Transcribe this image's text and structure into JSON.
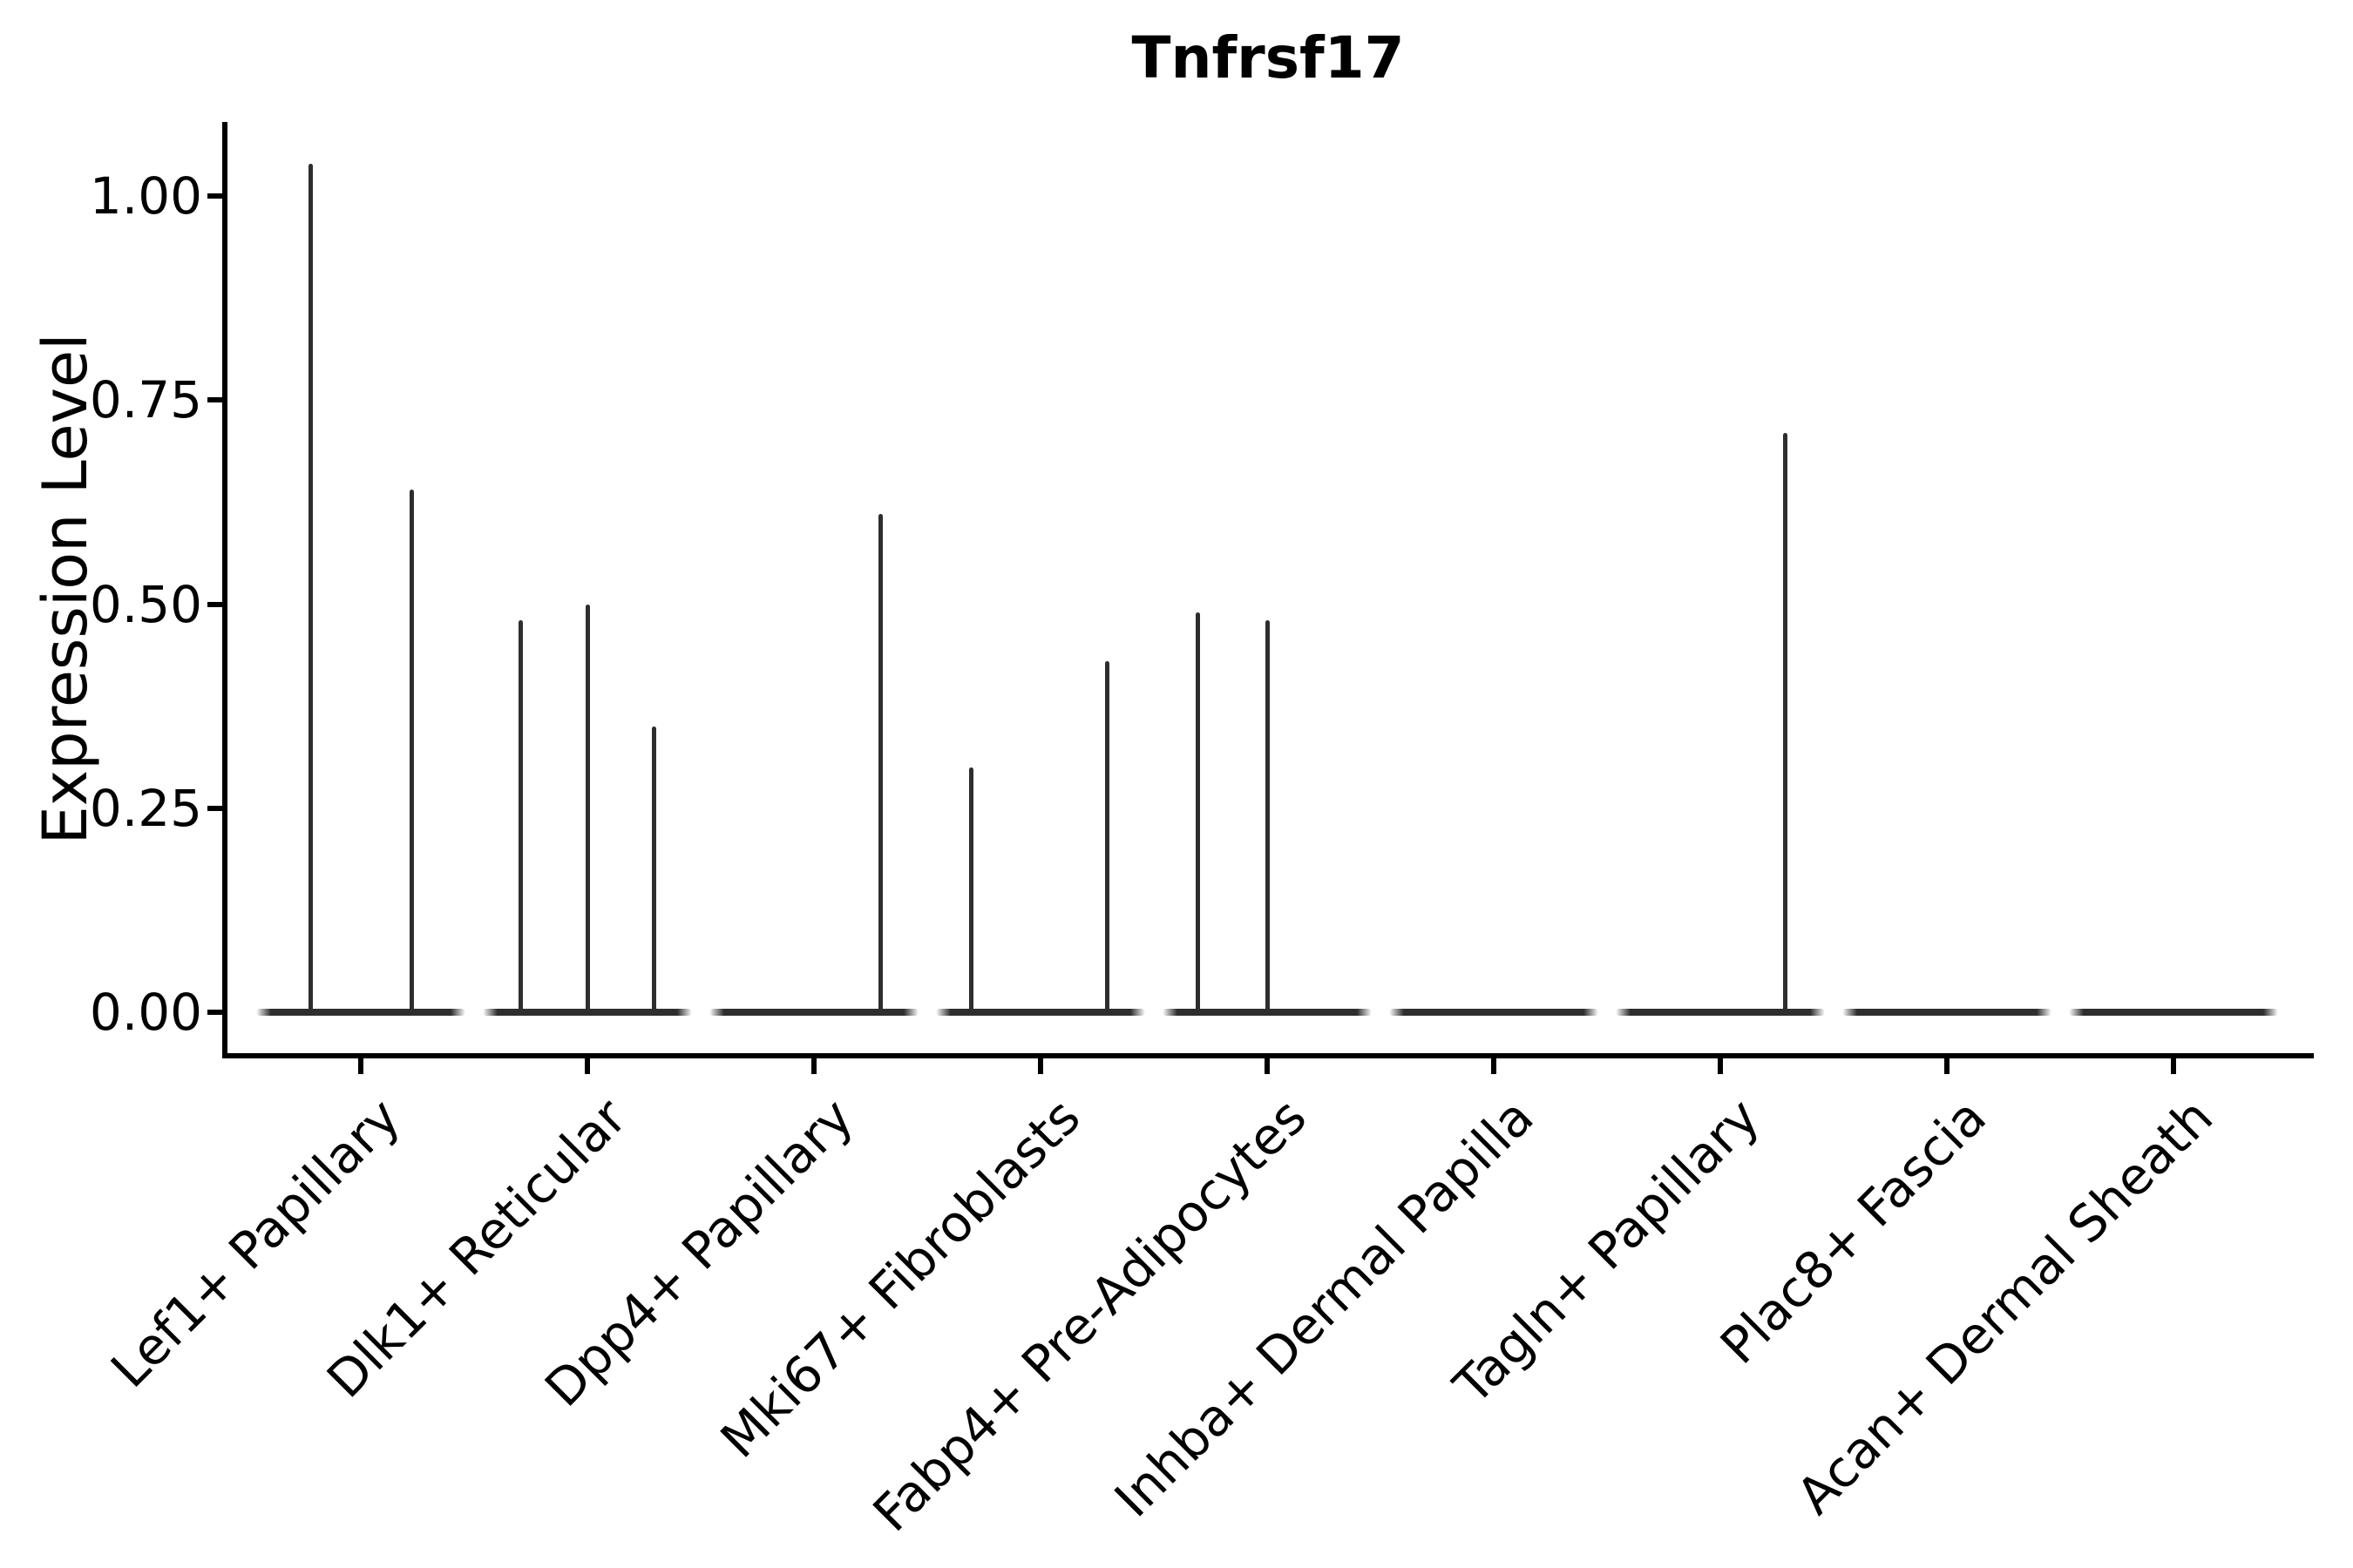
{
  "title": "Tnfrsf17",
  "axes": {
    "ylabel": "Expression Level",
    "y_tick_labels": [
      "0.00",
      "0.25",
      "0.50",
      "0.75",
      "1.00"
    ]
  },
  "colors": {
    "axis": "#000000",
    "text": "#000000",
    "violin": "#2e2e2e",
    "background": "#ffffff"
  },
  "chart_data": {
    "type": "violin",
    "title": "Tnfrsf17",
    "xlabel": "",
    "ylabel": "Expression Level",
    "ylim": [
      -0.05,
      1.09
    ],
    "y_ticks": [
      0,
      0.25,
      0.5,
      0.75,
      1.0
    ],
    "grid": false,
    "legend": "none",
    "categories": [
      "Lef1+ Papillary",
      "Dlk1+ Reticular",
      "Dpp4+ Papillary",
      "Mki67+ Fibroblasts",
      "Fabp4+ Pre-Adipocytes",
      "Inhba+ Dermal Papilla",
      "Tagln+ Papillary",
      "Plac8+ Fascia",
      "Acan+ Dermal Sheath"
    ],
    "series": [
      {
        "name": "Lef1+ Papillary",
        "baseline_value": 0,
        "spikes": [
          {
            "frac": 0.26,
            "value": 1.04
          },
          {
            "frac": 0.745,
            "value": 0.64
          }
        ]
      },
      {
        "name": "Dlk1+ Reticular",
        "baseline_value": 0,
        "spikes": [
          {
            "frac": 0.18,
            "value": 0.48
          },
          {
            "frac": 0.5,
            "value": 0.5
          },
          {
            "frac": 0.82,
            "value": 0.35
          }
        ]
      },
      {
        "name": "Dpp4+ Papillary",
        "baseline_value": 0,
        "spikes": [
          {
            "frac": 0.82,
            "value": 0.61
          }
        ]
      },
      {
        "name": "Mki67+ Fibroblasts",
        "baseline_value": 0,
        "spikes": [
          {
            "frac": 0.17,
            "value": 0.3
          },
          {
            "frac": 0.82,
            "value": 0.43
          }
        ]
      },
      {
        "name": "Fabp4+ Pre-Adipocytes",
        "baseline_value": 0,
        "spikes": [
          {
            "frac": 0.17,
            "value": 0.49
          },
          {
            "frac": 0.5,
            "value": 0.48
          }
        ]
      },
      {
        "name": "Inhba+ Dermal Papilla",
        "baseline_value": 0,
        "spikes": []
      },
      {
        "name": "Tagln+ Papillary",
        "baseline_value": 0,
        "spikes": [
          {
            "frac": 0.81,
            "value": 0.71
          }
        ]
      },
      {
        "name": "Plac8+ Fascia",
        "baseline_value": 0,
        "spikes": []
      },
      {
        "name": "Acan+ Dermal Sheath",
        "baseline_value": 0,
        "spikes": []
      }
    ]
  }
}
